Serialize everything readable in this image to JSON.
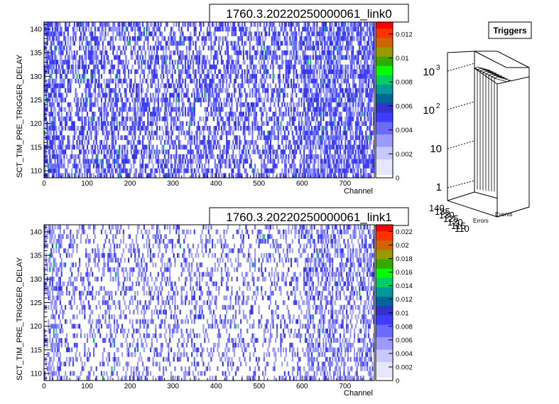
{
  "chart_data": [
    {
      "type": "heatmap",
      "title": "1760.3.20220250000061_link0",
      "xlabel": "Channel",
      "ylabel": "SCT_TIM_PRE_TRIGGER_DELAY",
      "xlim": [
        0,
        768
      ],
      "ylim": [
        108.5,
        141.5
      ],
      "x_ticks": [
        0,
        100,
        200,
        300,
        400,
        500,
        600,
        700
      ],
      "y_ticks": [
        110,
        115,
        120,
        125,
        130,
        135,
        140
      ],
      "y_rows": [
        109,
        141
      ],
      "colorbar": {
        "min": 0,
        "max": 0.013,
        "ticks": [
          0,
          0.002,
          0.004,
          0.006,
          0.008,
          0.01,
          0.012
        ]
      },
      "density": 0.55,
      "seed": 7,
      "colors": {
        "low": "#e6e6ff",
        "mid": "#3d3dff",
        "high": "#3333cc",
        "green": "#00cc66"
      }
    },
    {
      "type": "heatmap",
      "title": "1760.3.20220250000061_link1",
      "xlabel": "Channel",
      "ylabel": "SCT_TIM_PRE_TRIGGER_DELAY",
      "xlim": [
        0,
        768
      ],
      "ylim": [
        108.5,
        141.5
      ],
      "x_ticks": [
        0,
        100,
        200,
        300,
        400,
        500,
        600,
        700
      ],
      "y_ticks": [
        110,
        115,
        120,
        125,
        130,
        135,
        140
      ],
      "y_rows": [
        109,
        141
      ],
      "colorbar": {
        "min": 0,
        "max": 0.023,
        "ticks": [
          0,
          0.002,
          0.004,
          0.006,
          0.008,
          0.01,
          0.012,
          0.014,
          0.016,
          0.018,
          0.02,
          0.022
        ]
      },
      "density": 0.3,
      "seed": 13,
      "colors": {
        "low": "#e6e6ff",
        "mid": "#3d3dff",
        "high": "#3333cc",
        "green": "#00cc66"
      }
    },
    {
      "type": "bar",
      "title": "Triggers",
      "log_scale": true,
      "z_ticks": [
        "1",
        "10",
        "10^2",
        "10^3"
      ],
      "z_range": [
        1,
        1000
      ],
      "x_labels": [
        "Errors",
        "Events"
      ],
      "y_ticks": [
        110,
        115,
        120,
        125,
        130,
        135,
        140
      ],
      "value": 1000
    }
  ],
  "labels": {
    "tick_110": "110",
    "tick_115": "115",
    "tick_120": "120",
    "tick_125": "125",
    "tick_130": "130",
    "tick_135": "135",
    "tick_140": "140",
    "triggers_title": "Triggers",
    "triggers_errors": "Errors",
    "triggers_events": "Events",
    "z1": "1",
    "z10": "10",
    "z100b": "10",
    "z100e": "2",
    "z1000b": "10",
    "z1000e": "3"
  }
}
